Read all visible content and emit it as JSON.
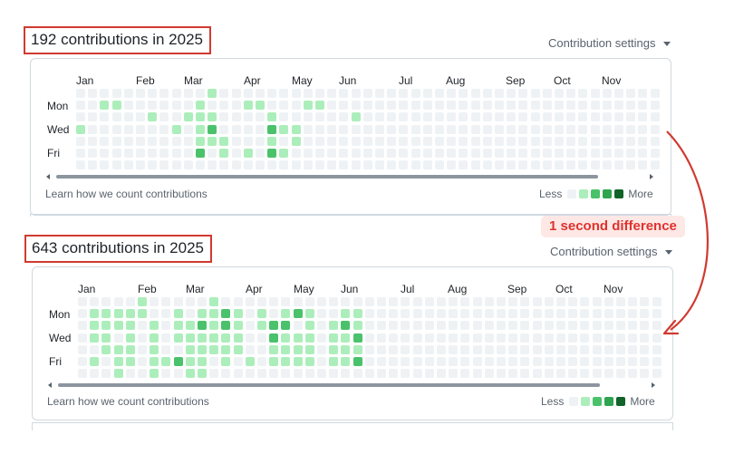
{
  "colors": {
    "level0": "#eff2f5",
    "level1": "#aceebb",
    "level2": "#4ac26b",
    "level3": "#2da44e",
    "level4": "#116329",
    "highlight_red": "#d03a30"
  },
  "annotation": {
    "label": "1 second difference"
  },
  "panels": [
    {
      "headline": "192 contributions in 2025",
      "settings_label": "Contribution settings",
      "months": [
        "Jan",
        "Feb",
        "Mar",
        "Apr",
        "May",
        "Jun",
        "Jul",
        "Aug",
        "Sep",
        "Oct",
        "Nov"
      ],
      "day_labels": [
        "Mon",
        "Wed",
        "Fri"
      ],
      "learn_link": "Learn how we count contributions",
      "legend_less": "Less",
      "legend_more": "More",
      "grid": [
        "00000000000100000000000000000000000000000000000000",
        "00110000001000110001100000000000000000000000000000",
        "00000010011100001000000100000000000000000000000000",
        "10000000101200002110000000000000000000000000000000",
        "00000000001110001010000000000000000000000000000000",
        "00000000002010102100000000000000000000000000000000",
        "00000000000000000000000000000000000000000000000000"
      ]
    },
    {
      "headline": "643 contributions in 2025",
      "settings_label": "Contribution settings",
      "months": [
        "Jan",
        "Feb",
        "Mar",
        "Apr",
        "May",
        "Jun",
        "Jul",
        "Aug",
        "Sep",
        "Oct",
        "Nov"
      ],
      "day_labels": [
        "Mon",
        "Wed",
        "Fri"
      ],
      "learn_link": "Learn how we count contributions",
      "legend_less": "Less",
      "legend_more": "More",
      "grid": [
        "00000100000100000000000000000000000000000000000000",
        "01111100101121010121001100000000000000000000000000",
        "01111010112121012201012100000000000000000000000000",
        "01101010111111002111011200000000000000000000000000",
        "00111010011111001111011100000000000000000000000000",
        "01011011211010101111011200000000000000000000000000",
        "00010010011000000000000000000000000000000000000000"
      ]
    }
  ]
}
